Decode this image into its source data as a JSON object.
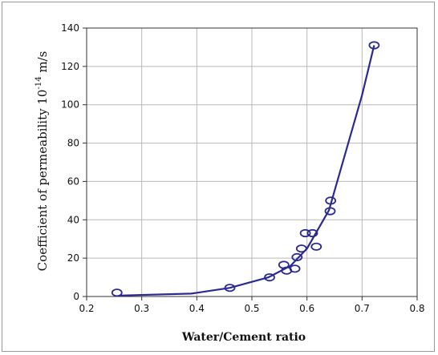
{
  "chart_data": {
    "type": "scatter",
    "title": "",
    "xlabel": "Water/Cement ratio",
    "ylabel_main": "Coefficient of permeability 10",
    "ylabel_exp": "-14",
    "ylabel_unit": " m/s",
    "xlim": [
      0.2,
      0.8
    ],
    "ylim": [
      0,
      140
    ],
    "xticks": [
      0.2,
      0.3,
      0.4,
      0.5,
      0.6,
      0.7,
      0.8
    ],
    "yticks": [
      0,
      20,
      40,
      60,
      80,
      100,
      120,
      140
    ],
    "xtick_labels": [
      "0.2",
      "0.3",
      "0.4",
      "0.5",
      "0.6",
      "0.7",
      "0.8"
    ],
    "ytick_labels": [
      "0",
      "20",
      "40",
      "60",
      "80",
      "100",
      "120",
      "140"
    ],
    "grid": true,
    "series": [
      {
        "marker": "circle",
        "points": [
          {
            "x": 0.255,
            "y": 2
          },
          {
            "x": 0.46,
            "y": 4.5
          },
          {
            "x": 0.532,
            "y": 10
          },
          {
            "x": 0.558,
            "y": 16.5
          },
          {
            "x": 0.563,
            "y": 13.5
          },
          {
            "x": 0.578,
            "y": 14.5
          },
          {
            "x": 0.582,
            "y": 20.5
          },
          {
            "x": 0.59,
            "y": 25
          },
          {
            "x": 0.597,
            "y": 33
          },
          {
            "x": 0.61,
            "y": 33
          },
          {
            "x": 0.617,
            "y": 26
          },
          {
            "x": 0.642,
            "y": 44.5
          },
          {
            "x": 0.643,
            "y": 50
          },
          {
            "x": 0.722,
            "y": 131
          }
        ]
      },
      {
        "style": "line",
        "points": [
          {
            "x": 0.26,
            "y": 0.5
          },
          {
            "x": 0.39,
            "y": 1.5
          },
          {
            "x": 0.46,
            "y": 4.5
          },
          {
            "x": 0.53,
            "y": 10
          },
          {
            "x": 0.57,
            "y": 16
          },
          {
            "x": 0.6,
            "y": 25
          },
          {
            "x": 0.64,
            "y": 45
          },
          {
            "x": 0.7,
            "y": 105
          },
          {
            "x": 0.722,
            "y": 131
          }
        ]
      }
    ],
    "colors": {
      "line": "#2b2a8f",
      "grid": "#b8b8b8",
      "axis": "#333333"
    }
  }
}
